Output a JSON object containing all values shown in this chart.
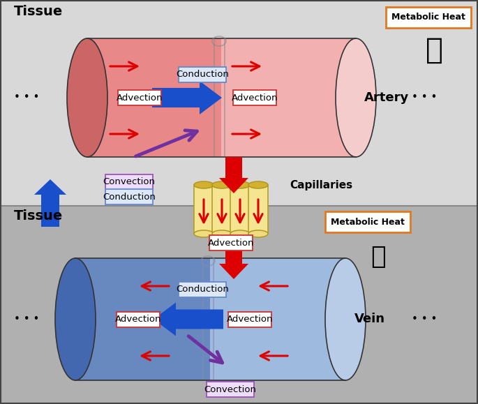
{
  "bg_top": "#d8d8d8",
  "bg_bottom": "#b0b0b0",
  "artery_body_color": "#e88888",
  "artery_left_cap": "#c06060",
  "artery_right_body": "#f0c0c0",
  "vein_body_color": "#7090c0",
  "vein_left_cap": "#4060a0",
  "vein_right_body": "#a8c0e0",
  "cap_fill": "#f5e098",
  "cap_edge": "#b09020",
  "cap_top_fill": "#d4b840",
  "red_arrow": "#dd0000",
  "blue_arrow": "#1a4fcc",
  "purple_arrow": "#7030a0",
  "metabolic_edge": "#e07820",
  "label_blue_fill": "#dce8f8",
  "label_blue_edge": "#6688cc",
  "label_red_fill": "#ffffff",
  "label_red_edge": "#cc3333",
  "label_purple_fill": "#eeddf8",
  "label_purple_edge": "#9955bb",
  "tissue_label": "Tissue",
  "artery_label": "Artery",
  "vein_label": "Vein",
  "capillaries_label": "Capillaries",
  "metabolic_label": "Metabolic Heat",
  "conduction_label": "Conduction",
  "advection_label": "Advection",
  "convection_label": "Convection"
}
